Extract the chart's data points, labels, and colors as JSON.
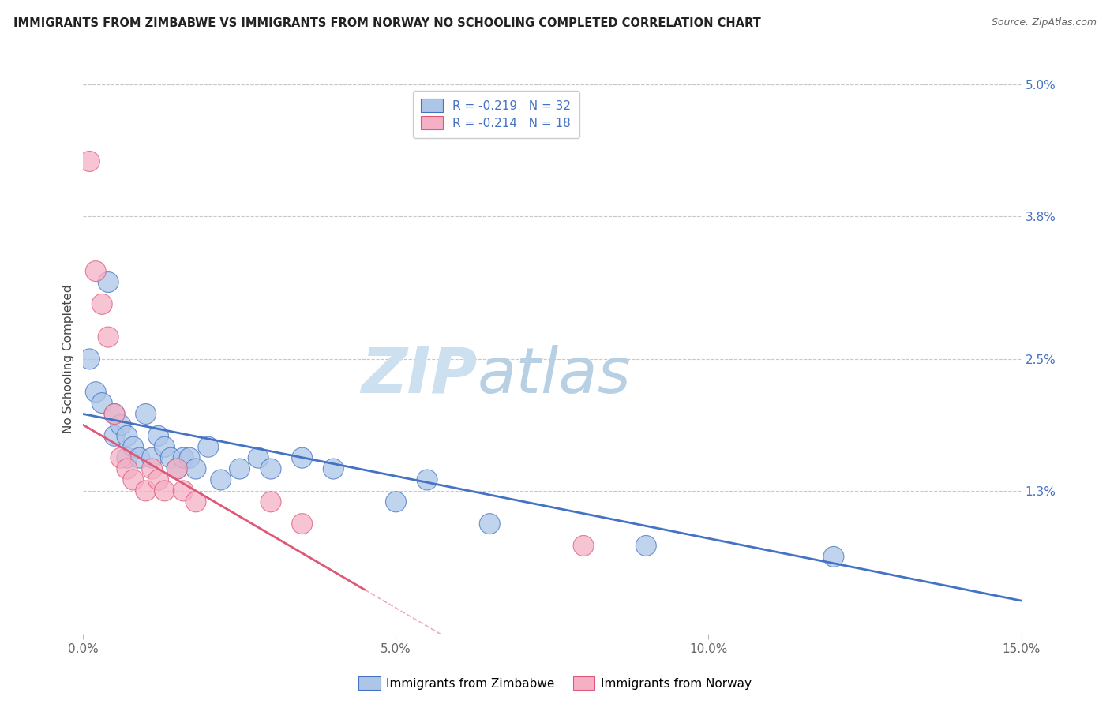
{
  "title": "IMMIGRANTS FROM ZIMBABWE VS IMMIGRANTS FROM NORWAY NO SCHOOLING COMPLETED CORRELATION CHART",
  "source": "Source: ZipAtlas.com",
  "ylabel": "No Schooling Completed",
  "xlim": [
    0.0,
    0.15
  ],
  "ylim": [
    0.0,
    0.05
  ],
  "xtick_labels": [
    "0.0%",
    "5.0%",
    "10.0%",
    "15.0%"
  ],
  "xtick_vals": [
    0.0,
    0.05,
    0.1,
    0.15
  ],
  "ytick_labels_right": [
    "1.3%",
    "2.5%",
    "3.8%",
    "5.0%"
  ],
  "ytick_vals_right": [
    0.013,
    0.025,
    0.038,
    0.05
  ],
  "legend_r1": "R = -0.219",
  "legend_n1": "N = 32",
  "legend_r2": "R = -0.214",
  "legend_n2": "N = 18",
  "color_zimbabwe": "#adc6e8",
  "color_norway": "#f5b0c5",
  "color_line_zimbabwe": "#4472c4",
  "color_line_norway": "#e05878",
  "background": "#ffffff",
  "grid_color": "#c8c8c8",
  "zimbabwe_x": [
    0.001,
    0.002,
    0.003,
    0.004,
    0.005,
    0.005,
    0.006,
    0.007,
    0.007,
    0.008,
    0.009,
    0.01,
    0.011,
    0.012,
    0.013,
    0.014,
    0.015,
    0.016,
    0.017,
    0.018,
    0.02,
    0.022,
    0.025,
    0.028,
    0.03,
    0.035,
    0.04,
    0.05,
    0.055,
    0.065,
    0.09,
    0.12
  ],
  "zimbabwe_y": [
    0.025,
    0.022,
    0.021,
    0.032,
    0.02,
    0.018,
    0.019,
    0.018,
    0.016,
    0.017,
    0.016,
    0.02,
    0.016,
    0.018,
    0.017,
    0.016,
    0.015,
    0.016,
    0.016,
    0.015,
    0.017,
    0.014,
    0.015,
    0.016,
    0.015,
    0.016,
    0.015,
    0.012,
    0.014,
    0.01,
    0.008,
    0.007
  ],
  "zimbabwe_size": [
    350,
    350,
    350,
    350,
    350,
    350,
    350,
    350,
    350,
    350,
    350,
    350,
    350,
    350,
    350,
    350,
    350,
    350,
    350,
    350,
    350,
    350,
    350,
    350,
    350,
    350,
    350,
    350,
    350,
    350,
    350,
    350
  ],
  "norway_x": [
    0.001,
    0.002,
    0.003,
    0.004,
    0.005,
    0.006,
    0.007,
    0.008,
    0.01,
    0.011,
    0.012,
    0.013,
    0.015,
    0.016,
    0.018,
    0.03,
    0.035,
    0.08
  ],
  "norway_y": [
    0.043,
    0.033,
    0.03,
    0.027,
    0.02,
    0.016,
    0.015,
    0.014,
    0.013,
    0.015,
    0.014,
    0.013,
    0.015,
    0.013,
    0.012,
    0.012,
    0.01,
    0.008
  ],
  "norway_size": [
    350,
    350,
    350,
    350,
    350,
    350,
    350,
    350,
    350,
    350,
    350,
    350,
    350,
    350,
    350,
    350,
    350,
    350
  ],
  "zim_line_x0": 0.0,
  "zim_line_y0": 0.02,
  "zim_line_x1": 0.15,
  "zim_line_y1": 0.003,
  "nor_line_x0": 0.0,
  "nor_line_y0": 0.019,
  "nor_line_x1": 0.045,
  "nor_line_y1": 0.004
}
